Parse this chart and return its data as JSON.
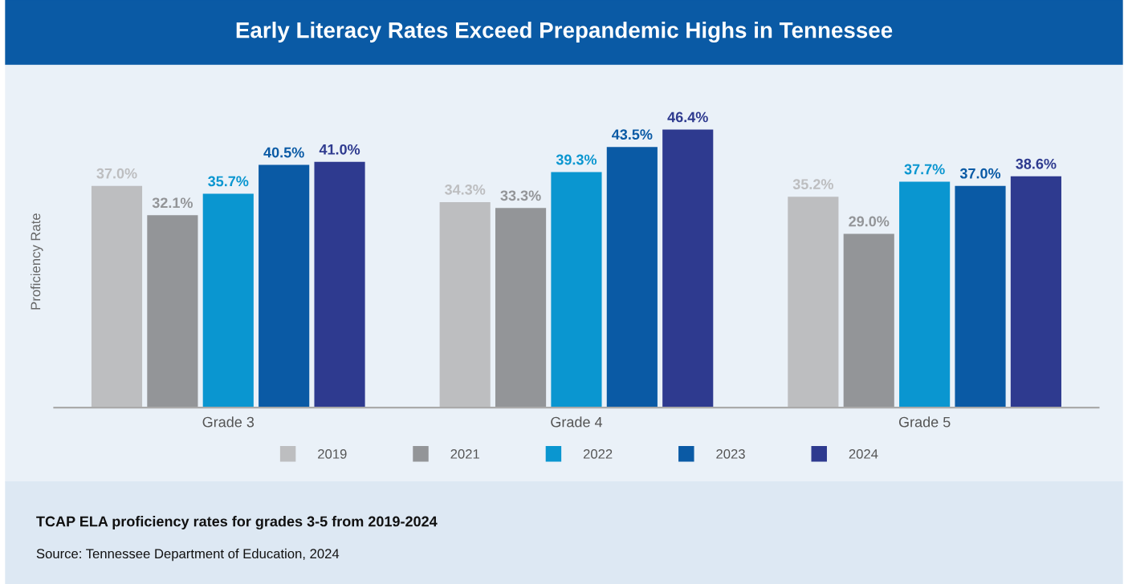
{
  "chart_data": {
    "type": "bar",
    "title": "Early Literacy Rates Exceed Prepandemic Highs in Tennessee",
    "ylabel": "Proficiency Rate",
    "categories": [
      "Grade 3",
      "Grade 4",
      "Grade 5"
    ],
    "series": [
      {
        "name": "2019",
        "color": "#bdbec0",
        "values": [
          37.0,
          34.3,
          35.2
        ],
        "value_labels": [
          "37.0%",
          "34.3%",
          "35.2%"
        ]
      },
      {
        "name": "2021",
        "color": "#939598",
        "values": [
          32.1,
          33.3,
          29.0
        ],
        "value_labels": [
          "32.1%",
          "33.3%",
          "29.0%"
        ]
      },
      {
        "name": "2022",
        "color": "#0a96d0",
        "values": [
          35.7,
          39.3,
          37.7
        ],
        "value_labels": [
          "35.7%",
          "39.3%",
          "37.7%"
        ]
      },
      {
        "name": "2023",
        "color": "#0a5aa5",
        "values": [
          40.5,
          43.5,
          37.0
        ],
        "value_labels": [
          "40.5%",
          "43.5%",
          "37.0%"
        ]
      },
      {
        "name": "2024",
        "color": "#2e3a8f",
        "values": [
          41.0,
          46.4,
          38.6
        ],
        "value_labels": [
          "41.0%",
          "46.4%",
          "38.6%"
        ]
      }
    ],
    "tick_labels": "x",
    "grid": false,
    "legend": "bottom",
    "annotations": [
      "TCAP ELA proficiency rates for grades 3-5 from 2019-2024",
      "Source: Tennessee Department of Education, 2024"
    ]
  }
}
